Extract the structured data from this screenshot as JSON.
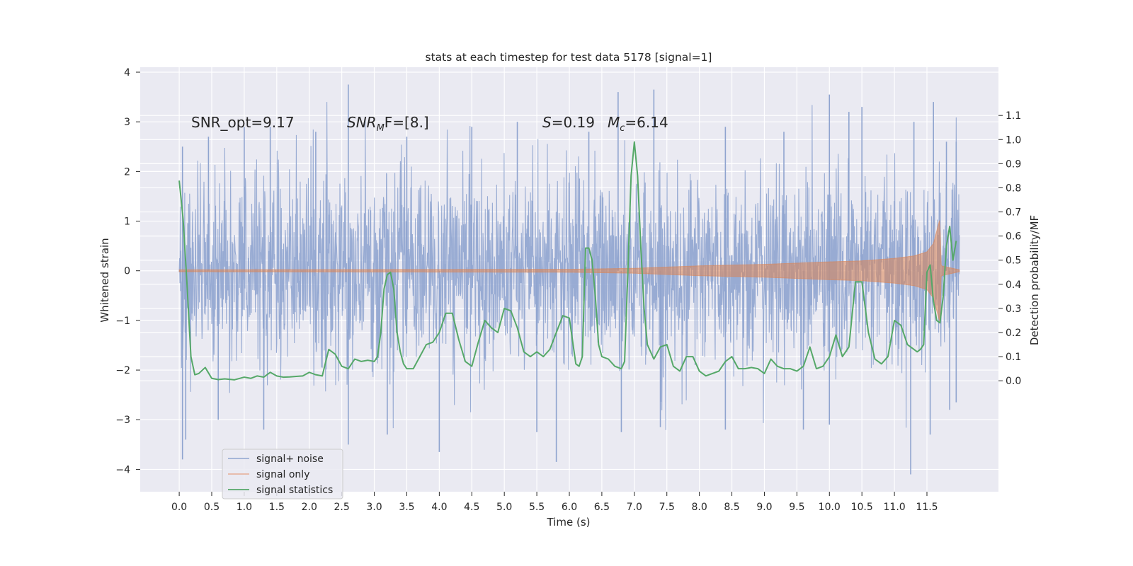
{
  "chart_data": {
    "type": "line",
    "title": "stats at each timestep for test data 5178 [signal=1]",
    "xlabel": "Time (s)",
    "ylabel": "Whitened strain",
    "ylabel_right": "Detection probability/MF",
    "xlim": [
      -0.6,
      12.6
    ],
    "ylim": [
      -4.45,
      4.1
    ],
    "ylim_right": [
      -0.46,
      1.3
    ],
    "xticks": [
      0.0,
      0.5,
      1.0,
      1.5,
      2.0,
      2.5,
      3.0,
      3.5,
      4.0,
      4.5,
      5.0,
      5.5,
      6.0,
      6.5,
      7.0,
      7.5,
      8.0,
      8.5,
      9.0,
      9.5,
      10.0,
      10.5,
      11.0,
      11.5
    ],
    "xtick_labels": [
      "0.0",
      "0.5",
      "1.0",
      "1.5",
      "2.0",
      "2.5",
      "3.0",
      "3.5",
      "4.0",
      "4.5",
      "5.0",
      "5.5",
      "6.0",
      "6.5",
      "7.0",
      "7.5",
      "8.0",
      "8.5",
      "9.0",
      "9.5",
      "10.0",
      "10.5",
      "11.0",
      "11.5"
    ],
    "yticks": [
      -4,
      -3,
      -2,
      -1,
      0,
      1,
      2,
      3,
      4
    ],
    "ytick_labels": [
      "−4",
      "−3",
      "−2",
      "−1",
      "0",
      "1",
      "2",
      "3",
      "4"
    ],
    "yticks_right": [
      0.0,
      0.1,
      0.2,
      0.3,
      0.4,
      0.5,
      0.6,
      0.7,
      0.8,
      0.9,
      1.0,
      1.1
    ],
    "ytick_labels_right": [
      "0.0",
      "0.1",
      "0.2",
      "0.3",
      "0.4",
      "0.5",
      "0.6",
      "0.7",
      "0.8",
      "0.9",
      "1.0",
      "1.1"
    ],
    "grid": true,
    "legend_position": "lower-left",
    "annotations": [
      "SNR_opt=9.17",
      "SNR",
      "M",
      "F=[8.]",
      "S",
      "=0.19",
      "M",
      "c",
      "=6.14"
    ],
    "series": [
      {
        "name": "signal+ noise",
        "color": "#8fa4cf",
        "axis": "left",
        "x_range": [
          0.0,
          12.0
        ],
        "envelope_peaks_high": [
          [
            0.05,
            2.5
          ],
          [
            0.45,
            2.7
          ],
          [
            1.0,
            2.9
          ],
          [
            1.4,
            2.9
          ],
          [
            2.1,
            2.8
          ],
          [
            2.6,
            3.75
          ],
          [
            3.5,
            2.7
          ],
          [
            4.5,
            2.9
          ],
          [
            5.2,
            3.0
          ],
          [
            6.3,
            2.8
          ],
          [
            6.75,
            3.6
          ],
          [
            7.3,
            3.65
          ],
          [
            8.4,
            2.9
          ],
          [
            9.3,
            2.8
          ],
          [
            10.0,
            3.55
          ],
          [
            10.3,
            3.2
          ],
          [
            10.5,
            3.3
          ],
          [
            11.3,
            3.0
          ],
          [
            11.6,
            3.4
          ],
          [
            11.8,
            2.6
          ],
          [
            11.95,
            2.6
          ]
        ],
        "envelope_peaks_low": [
          [
            0.05,
            -3.8
          ],
          [
            0.1,
            -3.4
          ],
          [
            0.6,
            -3.0
          ],
          [
            1.3,
            -3.2
          ],
          [
            2.6,
            -3.5
          ],
          [
            3.2,
            -3.3
          ],
          [
            4.0,
            -3.65
          ],
          [
            5.5,
            -3.25
          ],
          [
            5.8,
            -3.85
          ],
          [
            6.8,
            -3.25
          ],
          [
            7.4,
            -3.15
          ],
          [
            8.4,
            -3.2
          ],
          [
            9.6,
            -3.2
          ],
          [
            10.0,
            -3.1
          ],
          [
            11.25,
            -4.1
          ],
          [
            11.55,
            -3.3
          ],
          [
            11.85,
            -2.8
          ],
          [
            11.95,
            -2.65
          ]
        ]
      },
      {
        "name": "signal only",
        "color": "#dd8452",
        "axis": "left",
        "x_range": [
          0.0,
          12.0
        ],
        "amplitude_envelope": [
          [
            0.0,
            0.02
          ],
          [
            6.0,
            0.03
          ],
          [
            7.0,
            0.05
          ],
          [
            8.0,
            0.1
          ],
          [
            9.0,
            0.13
          ],
          [
            10.0,
            0.18
          ],
          [
            10.5,
            0.2
          ],
          [
            11.0,
            0.25
          ],
          [
            11.3,
            0.3
          ],
          [
            11.5,
            0.38
          ],
          [
            11.6,
            0.55
          ],
          [
            11.67,
            0.9
          ],
          [
            11.7,
            1.05
          ],
          [
            11.72,
            0.1
          ],
          [
            12.0,
            0.02
          ]
        ]
      },
      {
        "name": "signal statistics",
        "color": "#55a868",
        "axis": "right",
        "x": [
          0.0,
          0.06,
          0.12,
          0.18,
          0.24,
          0.3,
          0.4,
          0.5,
          0.6,
          0.7,
          0.85,
          1.0,
          1.1,
          1.2,
          1.3,
          1.4,
          1.5,
          1.6,
          1.7,
          1.8,
          1.9,
          2.0,
          2.1,
          2.2,
          2.3,
          2.4,
          2.5,
          2.6,
          2.7,
          2.8,
          2.9,
          3.0,
          3.05,
          3.1,
          3.15,
          3.2,
          3.25,
          3.3,
          3.35,
          3.4,
          3.45,
          3.5,
          3.6,
          3.7,
          3.8,
          3.9,
          4.0,
          4.1,
          4.2,
          4.3,
          4.4,
          4.5,
          4.6,
          4.7,
          4.8,
          4.9,
          5.0,
          5.1,
          5.2,
          5.3,
          5.4,
          5.5,
          5.6,
          5.7,
          5.8,
          5.9,
          6.0,
          6.1,
          6.15,
          6.2,
          6.25,
          6.3,
          6.35,
          6.4,
          6.45,
          6.5,
          6.6,
          6.7,
          6.8,
          6.85,
          6.9,
          6.95,
          7.0,
          7.05,
          7.1,
          7.15,
          7.2,
          7.3,
          7.4,
          7.5,
          7.6,
          7.7,
          7.8,
          7.9,
          8.0,
          8.1,
          8.2,
          8.3,
          8.4,
          8.5,
          8.6,
          8.7,
          8.8,
          8.9,
          9.0,
          9.1,
          9.2,
          9.3,
          9.4,
          9.5,
          9.6,
          9.7,
          9.8,
          9.9,
          10.0,
          10.1,
          10.2,
          10.3,
          10.4,
          10.5,
          10.6,
          10.7,
          10.8,
          10.9,
          11.0,
          11.1,
          11.2,
          11.3,
          11.35,
          11.4,
          11.45,
          11.5,
          11.55,
          11.6,
          11.65,
          11.7,
          11.75,
          11.8,
          11.85,
          11.9,
          11.95
        ],
        "y": [
          0.83,
          0.67,
          0.4,
          0.1,
          0.025,
          0.03,
          0.055,
          0.01,
          0.005,
          0.008,
          0.004,
          0.015,
          0.01,
          0.02,
          0.015,
          0.035,
          0.02,
          0.015,
          0.016,
          0.018,
          0.02,
          0.035,
          0.025,
          0.02,
          0.13,
          0.11,
          0.06,
          0.05,
          0.09,
          0.08,
          0.085,
          0.08,
          0.1,
          0.2,
          0.38,
          0.44,
          0.45,
          0.38,
          0.2,
          0.12,
          0.07,
          0.05,
          0.05,
          0.1,
          0.15,
          0.16,
          0.2,
          0.28,
          0.28,
          0.17,
          0.08,
          0.06,
          0.16,
          0.25,
          0.22,
          0.2,
          0.3,
          0.29,
          0.22,
          0.12,
          0.1,
          0.12,
          0.1,
          0.13,
          0.2,
          0.27,
          0.26,
          0.07,
          0.06,
          0.1,
          0.55,
          0.55,
          0.5,
          0.35,
          0.15,
          0.1,
          0.09,
          0.06,
          0.05,
          0.08,
          0.45,
          0.85,
          0.99,
          0.85,
          0.55,
          0.3,
          0.15,
          0.09,
          0.14,
          0.15,
          0.06,
          0.04,
          0.1,
          0.1,
          0.04,
          0.02,
          0.03,
          0.04,
          0.08,
          0.1,
          0.05,
          0.05,
          0.055,
          0.05,
          0.03,
          0.09,
          0.06,
          0.05,
          0.05,
          0.04,
          0.06,
          0.14,
          0.05,
          0.06,
          0.1,
          0.19,
          0.1,
          0.14,
          0.41,
          0.41,
          0.2,
          0.09,
          0.07,
          0.1,
          0.25,
          0.23,
          0.15,
          0.13,
          0.12,
          0.13,
          0.15,
          0.45,
          0.48,
          0.33,
          0.25,
          0.24,
          0.35,
          0.56,
          0.64,
          0.5,
          0.58
        ]
      }
    ]
  }
}
